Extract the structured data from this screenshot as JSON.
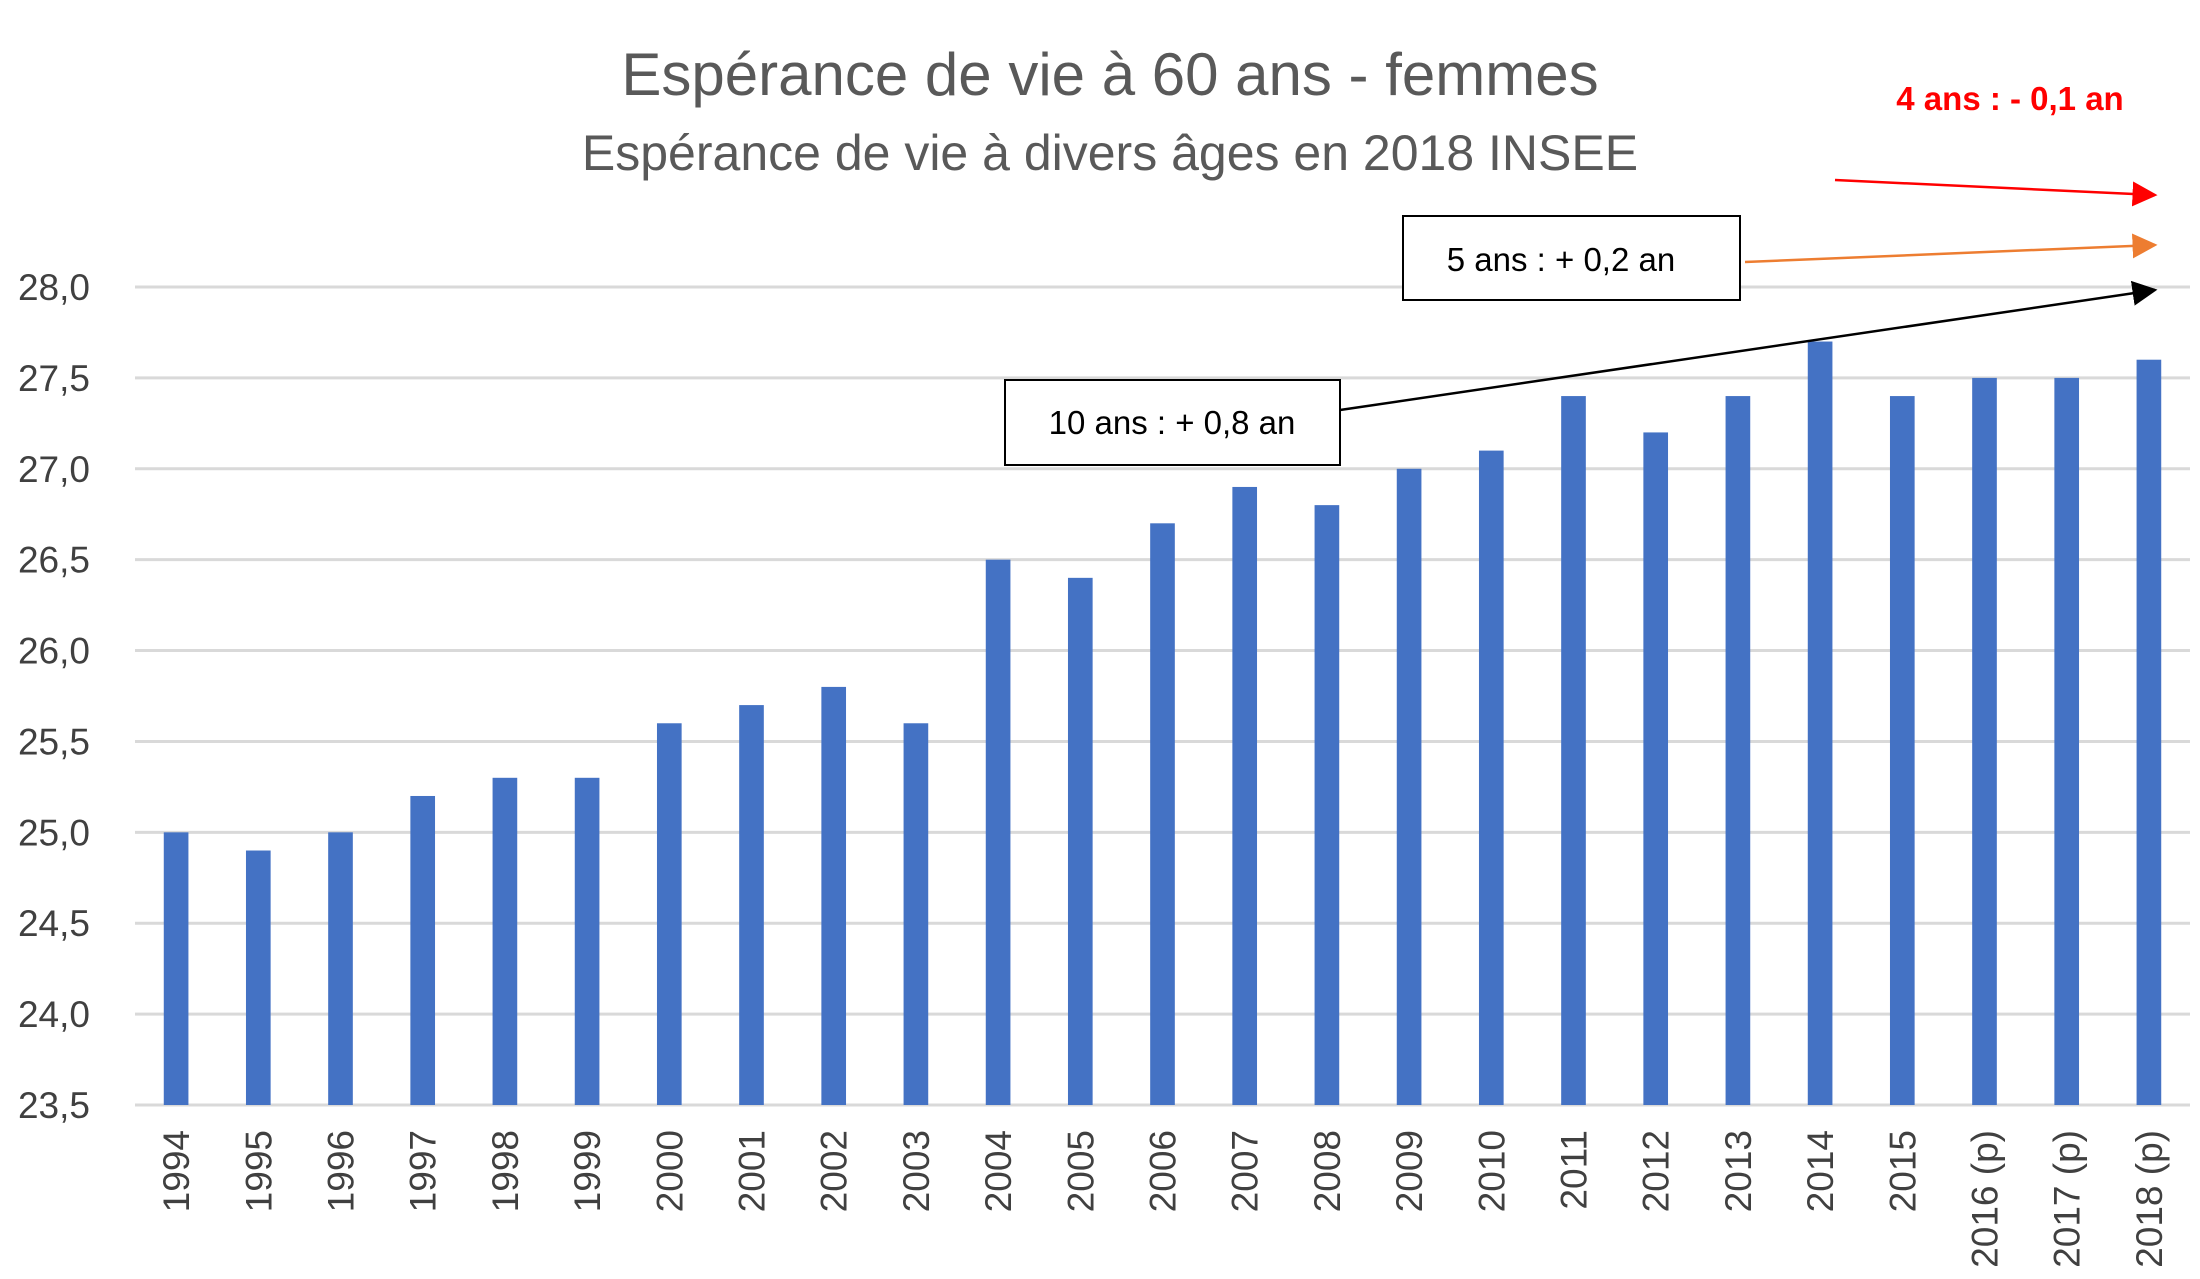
{
  "chart_data": {
    "type": "bar",
    "title": "Espérance de vie à 60 ans - femmes",
    "subtitle": "Espérance de vie à divers âges en 2018 INSEE",
    "xlabel": "",
    "ylabel": "",
    "ylim": [
      23.5,
      28.0
    ],
    "yticks": [
      "23,5",
      "24,0",
      "24,5",
      "25,0",
      "25,5",
      "26,0",
      "26,5",
      "27,0",
      "27,5",
      "28,0"
    ],
    "grid": true,
    "categories": [
      "1994",
      "1995",
      "1996",
      "1997",
      "1998",
      "1999",
      "2000",
      "2001",
      "2002",
      "2003",
      "2004",
      "2005",
      "2006",
      "2007",
      "2008",
      "2009",
      "2010",
      "2011",
      "2012",
      "2013",
      "2014",
      "2015",
      "2016 (p)",
      "2017 (p)",
      "2018 (p)"
    ],
    "values": [
      25.0,
      24.9,
      25.0,
      25.2,
      25.3,
      25.3,
      25.6,
      25.7,
      25.8,
      25.6,
      26.5,
      26.4,
      26.7,
      26.9,
      26.8,
      27.0,
      27.1,
      27.4,
      27.2,
      27.4,
      27.7,
      27.4,
      27.5,
      27.5,
      27.6
    ],
    "series_color": "#4472c4",
    "annotations": {
      "ten_years": "10 ans : + 0,8 an",
      "five_years": "5 ans : + 0,2 an",
      "four_years": "4 ans : - 0,1  an",
      "colors": {
        "ten_years": "#000000",
        "five_years": "#ed7d31",
        "four_years": "#ff0000"
      }
    }
  }
}
